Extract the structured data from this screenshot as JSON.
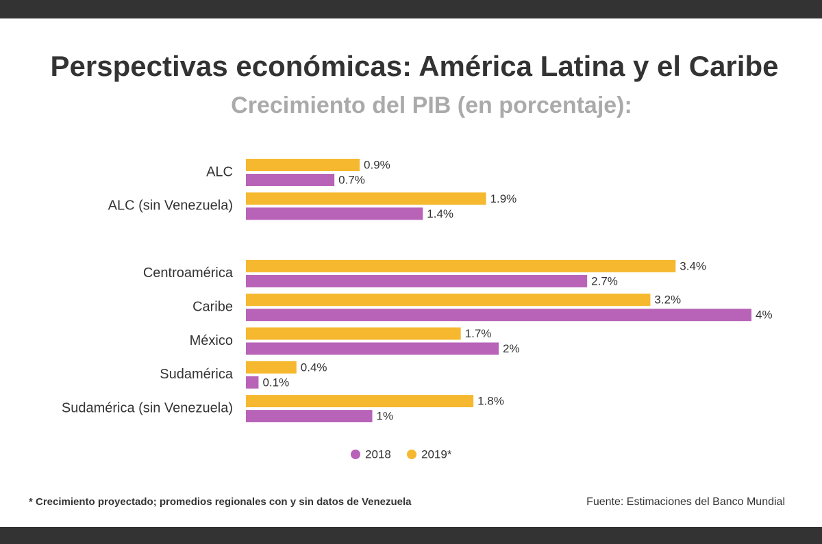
{
  "chart_data": {
    "type": "hbar",
    "title": "Perspectivas económicas: América Latina y el Caribe",
    "subtitle": "Crecimiento del PIB (en porcentaje):",
    "categories": [
      "ALC",
      "ALC (sin Venezuela)",
      "Centroamérica",
      "Caribe",
      "México",
      "Sudamérica",
      "Sudamérica (sin Venezuela)"
    ],
    "series": [
      {
        "name": "2018",
        "color": "#b863b8",
        "values": [
          0.7,
          1.4,
          2.7,
          4,
          2,
          0.1,
          1
        ],
        "value_labels": [
          "0.7%",
          "1.4%",
          "2.7%",
          "4%",
          "2%",
          "0.1%",
          "1%"
        ]
      },
      {
        "name": "2019*",
        "color": "#f5b82e",
        "values": [
          0.9,
          1.9,
          3.4,
          3.2,
          1.7,
          0.4,
          1.8
        ],
        "value_labels": [
          "0.9%",
          "1.9%",
          "3.4%",
          "3.2%",
          "1.7%",
          "0.4%",
          "1.8%"
        ]
      }
    ],
    "footnote": "* Crecimiento proyectado; promedios regionales con y sin datos de Venezuela",
    "source": "Fuente: Estimaciones del Banco Mundial"
  }
}
